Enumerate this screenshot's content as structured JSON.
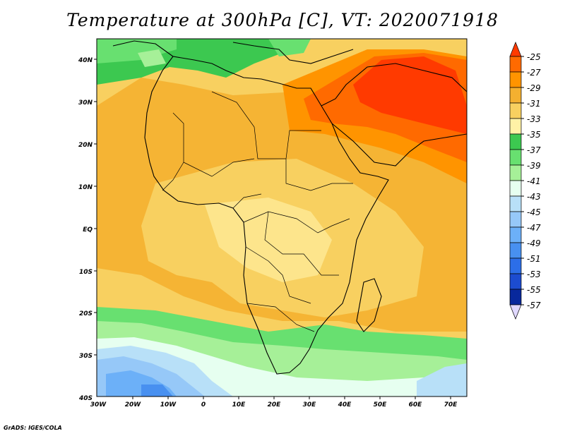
{
  "title": "Temperature at 300hPa [C], VT: 2020071918",
  "credit": "GrADS: IGES/COLA",
  "map": {
    "lat_labels": [
      "40N",
      "30N",
      "20N",
      "10N",
      "EQ",
      "10S",
      "20S",
      "30S",
      "40S"
    ],
    "lon_labels": [
      "30W",
      "20W",
      "10W",
      "0",
      "10E",
      "20E",
      "30E",
      "40E",
      "50E",
      "60E",
      "70E"
    ]
  },
  "colorbar": {
    "labels": [
      "-25",
      "-27",
      "-29",
      "-31",
      "-33",
      "-35",
      "-37",
      "-39",
      "-41",
      "-43",
      "-45",
      "-47",
      "-49",
      "-51",
      "-53",
      "-55",
      "-57"
    ],
    "colors": [
      "#ff3a00",
      "#ff6a00",
      "#ff9400",
      "#f4b030",
      "#f8d060",
      "#fff2a6",
      "#3cc850",
      "#68e070",
      "#a6f098",
      "#e6fff0",
      "#b8e0f8",
      "#96c8f8",
      "#6cb0f8",
      "#4890f0",
      "#2c6ee8",
      "#1c4cd0",
      "#08289c",
      "#000080",
      "#e0d8ff"
    ]
  }
}
